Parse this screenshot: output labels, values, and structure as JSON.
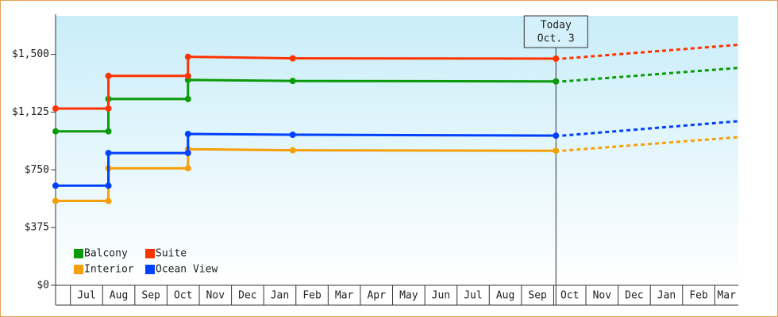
{
  "chart_data": {
    "type": "step-line",
    "categories": [
      "Jul",
      "Aug",
      "Sep",
      "Oct",
      "Nov",
      "Dec",
      "Jan",
      "Feb",
      "Mar",
      "Apr",
      "May",
      "Jun",
      "Jul",
      "Aug",
      "Sep",
      "Oct",
      "Nov",
      "Dec",
      "Jan",
      "Feb",
      "Mar"
    ],
    "xlim": [
      -0.46,
      20.73
    ],
    "ylim": [
      0,
      1750
    ],
    "yticks": [
      {
        "value": 0,
        "label": "$0"
      },
      {
        "value": 375,
        "label": "$375"
      },
      {
        "value": 750,
        "label": "$750"
      },
      {
        "value": 1125,
        "label": "$1,125"
      },
      {
        "value": 1500,
        "label": "$1,500"
      }
    ],
    "series": [
      {
        "name": "Balcony",
        "color": "#0a9a0a",
        "x": [
          -0.46,
          1.18,
          1.18,
          3.65,
          3.65,
          6.9,
          15.07
        ],
        "values": [
          1000,
          1000,
          1210,
          1210,
          1334,
          1327,
          1324
        ],
        "projection": {
          "x": [
            15.27,
            20.73
          ],
          "values": [
            1324,
            1412
          ]
        }
      },
      {
        "name": "Suite",
        "color": "#ff3300",
        "x": [
          -0.46,
          1.18,
          1.18,
          3.65,
          3.65,
          6.9,
          15.07
        ],
        "values": [
          1148,
          1148,
          1360,
          1360,
          1484,
          1474,
          1472
        ],
        "projection": {
          "x": [
            15.27,
            20.73
          ],
          "values": [
            1472,
            1562
          ]
        }
      },
      {
        "name": "Interior",
        "color": "#f5a00a",
        "x": [
          -0.46,
          1.18,
          1.18,
          3.65,
          3.65,
          6.9,
          15.07
        ],
        "values": [
          548,
          548,
          760,
          760,
          884,
          877,
          874
        ],
        "projection": {
          "x": [
            15.27,
            20.73
          ],
          "values": [
            874,
            962
          ]
        }
      },
      {
        "name": "Ocean View",
        "color": "#0040ff",
        "x": [
          -0.46,
          1.18,
          1.18,
          3.65,
          3.65,
          6.9,
          15.07
        ],
        "values": [
          647,
          647,
          859,
          859,
          983,
          978,
          972
        ],
        "projection": {
          "x": [
            15.27,
            20.73
          ],
          "values": [
            972,
            1066
          ]
        }
      }
    ],
    "today": {
      "x": 15.07,
      "label": [
        "Today",
        "Oct. 3"
      ]
    }
  }
}
